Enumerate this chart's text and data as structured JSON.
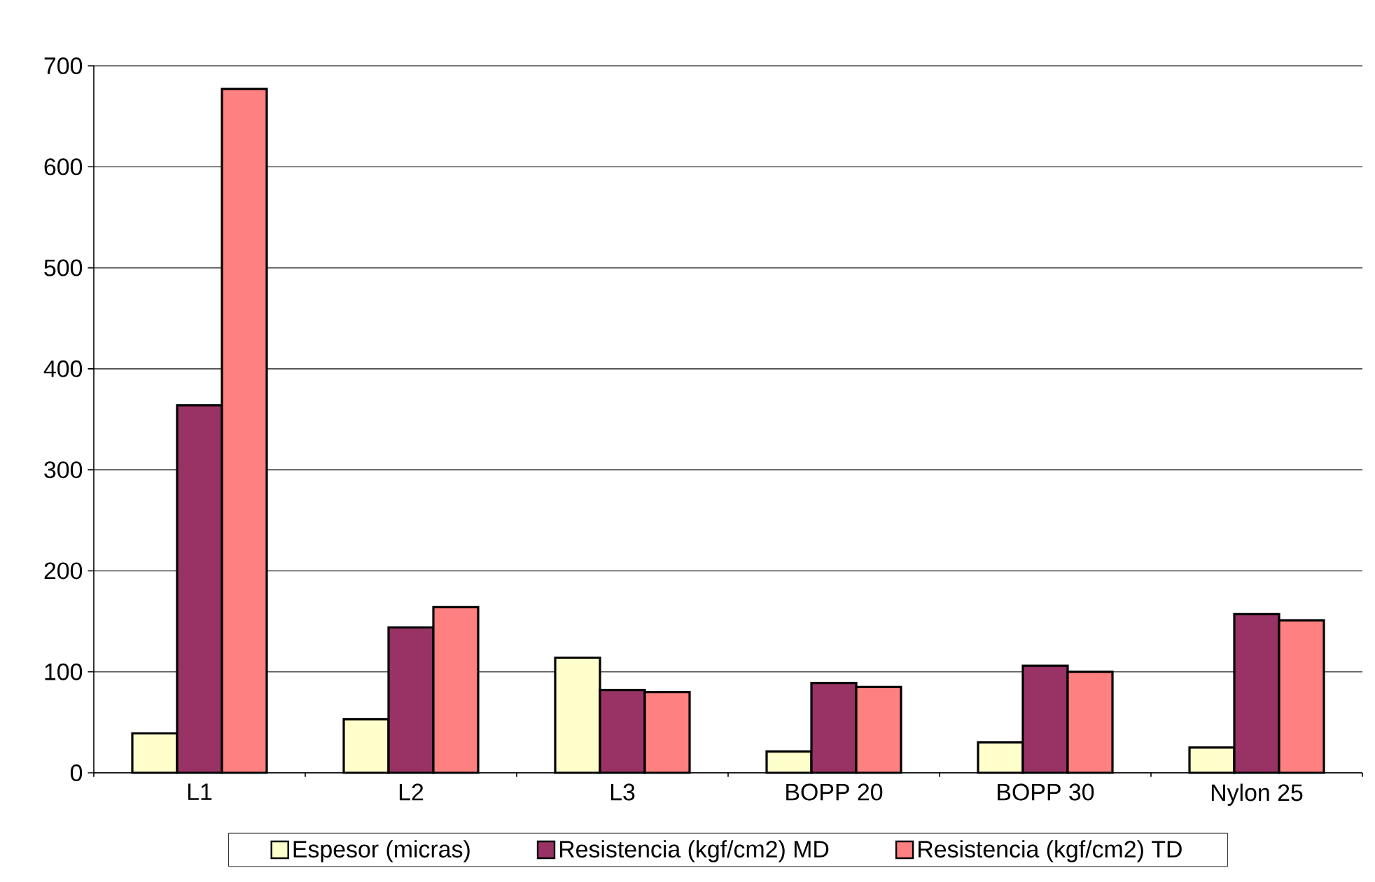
{
  "chart_data": {
    "type": "bar",
    "categories": [
      "L1",
      "L2",
      "L3",
      "BOPP 20",
      "BOPP 30",
      "Nylon 25"
    ],
    "series": [
      {
        "name": "Espesor (micras)",
        "color": "#ffffcc",
        "values": [
          39,
          53,
          114,
          21,
          30,
          25
        ]
      },
      {
        "name": "Resistencia (kgf/cm2) MD",
        "color": "#993366",
        "values": [
          364,
          144,
          82,
          89,
          106,
          157
        ]
      },
      {
        "name": "Resistencia (kgf/cm2) TD",
        "color": "#ff8080",
        "values": [
          677,
          164,
          80,
          85,
          100,
          151
        ]
      }
    ],
    "ylim": [
      0,
      700
    ],
    "yticks": [
      0,
      100,
      200,
      300,
      400,
      500,
      600,
      700
    ],
    "grid": "y",
    "legend": "bottom"
  }
}
